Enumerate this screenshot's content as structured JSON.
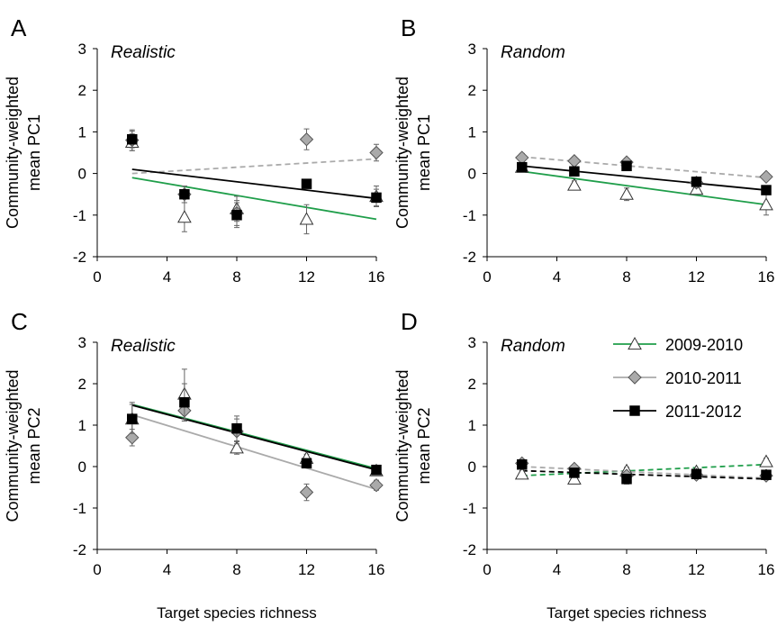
{
  "chart_data": [
    {
      "type": "scatter",
      "label": "A",
      "title": "Realistic",
      "ylabel": [
        "Community-weighted",
        "mean PC1"
      ],
      "x": [
        2,
        5,
        8,
        12,
        16
      ],
      "xlim": [
        0,
        16
      ],
      "xticks": [
        0,
        4,
        8,
        12,
        16
      ],
      "ylim": [
        -2,
        3
      ],
      "yticks": [
        -2,
        -1,
        0,
        1,
        2,
        3
      ],
      "series": [
        {
          "color": "#1f9e4a",
          "marker": "triangle",
          "marker_fill": "#ffffff",
          "values": [
            0.75,
            -1.05,
            -0.85,
            -1.1,
            -0.55
          ],
          "errors": [
            0.2,
            0.35,
            0.3,
            0.35,
            0.25
          ],
          "trend": {
            "x": [
              2,
              16
            ],
            "values": [
              -0.1,
              -1.1
            ]
          },
          "dashed": false
        },
        {
          "color": "#aaaaaa",
          "marker": "diamond",
          "marker_fill": "#aaaaaa",
          "values": [
            0.8,
            -0.5,
            -0.95,
            0.82,
            0.5
          ],
          "errors": [
            0.25,
            0.2,
            0.3,
            0.25,
            0.2
          ],
          "trend": {
            "x": [
              2,
              16
            ],
            "values": [
              0.0,
              0.35
            ]
          },
          "dashed": true
        },
        {
          "color": "#000000",
          "marker": "square",
          "marker_fill": "#000000",
          "values": [
            0.82,
            -0.5,
            -1.0,
            -0.25,
            -0.58
          ],
          "errors": [
            0.2,
            0.2,
            0.3,
            0.1,
            0.2
          ],
          "trend": {
            "x": [
              2,
              16
            ],
            "values": [
              0.1,
              -0.6
            ]
          },
          "dashed": false
        }
      ]
    },
    {
      "type": "scatter",
      "label": "B",
      "title": "Random",
      "ylabel": [
        "Community-weighted",
        "mean PC1"
      ],
      "x": [
        2,
        5,
        8,
        12,
        16
      ],
      "xlim": [
        0,
        16
      ],
      "xticks": [
        0,
        4,
        8,
        12,
        16
      ],
      "ylim": [
        -2,
        3
      ],
      "yticks": [
        -2,
        -1,
        0,
        1,
        2,
        3
      ],
      "series": [
        {
          "color": "#1f9e4a",
          "marker": "triangle",
          "marker_fill": "#ffffff",
          "values": [
            0.15,
            -0.28,
            -0.5,
            -0.38,
            -0.75
          ],
          "errors": [
            0.1,
            0.1,
            0.15,
            0.1,
            0.25
          ],
          "trend": {
            "x": [
              2,
              16
            ],
            "values": [
              0.05,
              -0.75
            ]
          },
          "dashed": false
        },
        {
          "color": "#aaaaaa",
          "marker": "diamond",
          "marker_fill": "#aaaaaa",
          "values": [
            0.38,
            0.3,
            0.27,
            -0.22,
            -0.08
          ],
          "errors": [
            0.1,
            0.08,
            0.08,
            0.1,
            0.08
          ],
          "trend": {
            "x": [
              2,
              16
            ],
            "values": [
              0.4,
              -0.1
            ]
          },
          "dashed": true
        },
        {
          "color": "#000000",
          "marker": "square",
          "marker_fill": "#000000",
          "values": [
            0.15,
            0.05,
            0.18,
            -0.2,
            -0.4
          ],
          "errors": [
            0.08,
            0.08,
            0.08,
            0.08,
            0.1
          ],
          "trend": {
            "x": [
              2,
              16
            ],
            "values": [
              0.18,
              -0.4
            ]
          },
          "dashed": false
        }
      ]
    },
    {
      "type": "scatter",
      "label": "C",
      "title": "Realistic",
      "ylabel": [
        "Community-weighted",
        "mean PC2"
      ],
      "xlabel": "Target species richness",
      "x": [
        2,
        5,
        8,
        12,
        16
      ],
      "xlim": [
        0,
        16
      ],
      "xticks": [
        0,
        4,
        8,
        12,
        16
      ],
      "ylim": [
        -2,
        3
      ],
      "yticks": [
        -2,
        -1,
        0,
        1,
        2,
        3
      ],
      "series": [
        {
          "color": "#1f9e4a",
          "marker": "triangle",
          "marker_fill": "#ffffff",
          "values": [
            1.15,
            1.75,
            0.45,
            0.2,
            -0.1
          ],
          "errors": [
            0.4,
            0.6,
            0.15,
            0.1,
            0.08
          ],
          "trend": {
            "x": [
              2,
              16
            ],
            "values": [
              1.5,
              -0.05
            ]
          },
          "dashed": false
        },
        {
          "color": "#aaaaaa",
          "marker": "diamond",
          "marker_fill": "#aaaaaa",
          "values": [
            0.7,
            1.35,
            0.85,
            -0.62,
            -0.45
          ],
          "errors": [
            0.2,
            0.25,
            0.3,
            0.2,
            0.12
          ],
          "trend": {
            "x": [
              2,
              16
            ],
            "values": [
              1.25,
              -0.55
            ]
          },
          "dashed": false
        },
        {
          "color": "#000000",
          "marker": "square",
          "marker_fill": "#000000",
          "values": [
            1.15,
            1.55,
            0.92,
            0.08,
            -0.08
          ],
          "errors": [
            0.35,
            0.45,
            0.3,
            0.1,
            0.08
          ],
          "trend": {
            "x": [
              2,
              16
            ],
            "values": [
              1.48,
              -0.08
            ]
          },
          "dashed": false
        }
      ]
    },
    {
      "type": "scatter",
      "label": "D",
      "title": "Random",
      "ylabel": [
        "Community-weighted",
        "mean PC2"
      ],
      "xlabel": "Target species richness",
      "legend": "upper right",
      "x": [
        2,
        5,
        8,
        12,
        16
      ],
      "xlim": [
        0,
        16
      ],
      "xticks": [
        0,
        4,
        8,
        12,
        16
      ],
      "ylim": [
        -2,
        3
      ],
      "yticks": [
        -2,
        -1,
        0,
        1,
        2,
        3
      ],
      "series": [
        {
          "name": "2009-2010",
          "color": "#1f9e4a",
          "marker": "triangle",
          "marker_fill": "#ffffff",
          "values": [
            -0.18,
            -0.3,
            -0.1,
            -0.12,
            0.12
          ],
          "errors": [
            0.08,
            0.08,
            0.08,
            0.05,
            0.08
          ],
          "trend": {
            "x": [
              2,
              16
            ],
            "values": [
              -0.22,
              0.05
            ]
          },
          "dashed": true
        },
        {
          "name": "2010-2011",
          "color": "#aaaaaa",
          "marker": "diamond",
          "marker_fill": "#aaaaaa",
          "values": [
            0.08,
            -0.05,
            -0.22,
            -0.2,
            -0.22
          ],
          "errors": [
            0.06,
            0.06,
            0.08,
            0.06,
            0.1
          ],
          "trend": {
            "x": [
              2,
              16
            ],
            "values": [
              0.0,
              -0.28
            ]
          },
          "dashed": true
        },
        {
          "name": "2011-2012",
          "color": "#000000",
          "marker": "square",
          "marker_fill": "#000000",
          "values": [
            0.05,
            -0.15,
            -0.3,
            -0.18,
            -0.2
          ],
          "errors": [
            0.06,
            0.06,
            0.12,
            0.06,
            0.1
          ],
          "trend": {
            "x": [
              2,
              16
            ],
            "values": [
              -0.1,
              -0.3
            ]
          },
          "dashed": true
        }
      ]
    }
  ]
}
